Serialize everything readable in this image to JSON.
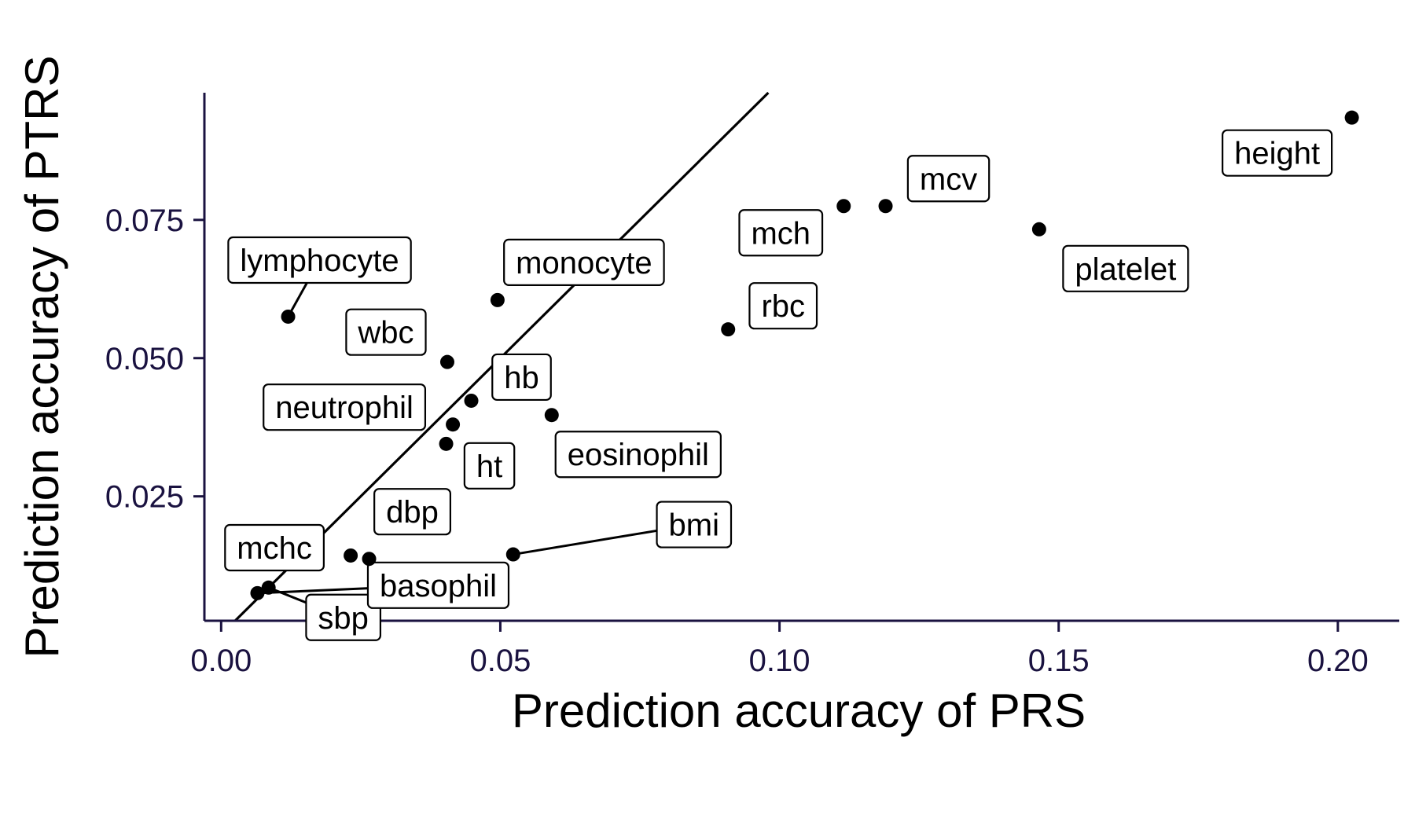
{
  "chart_data": {
    "type": "scatter",
    "xlabel": "Prediction accuracy of PRS",
    "ylabel": "Prediction accuracy of PTRS",
    "xlim": [
      -0.003,
      0.211
    ],
    "ylim": [
      0.0025,
      0.098
    ],
    "x_ticks": [
      {
        "value": 0.0,
        "label": "0.00"
      },
      {
        "value": 0.05,
        "label": "0.05"
      },
      {
        "value": 0.1,
        "label": "0.10"
      },
      {
        "value": 0.15,
        "label": "0.15"
      },
      {
        "value": 0.2,
        "label": "0.20"
      }
    ],
    "y_ticks": [
      {
        "value": 0.025,
        "label": "0.025"
      },
      {
        "value": 0.05,
        "label": "0.050"
      },
      {
        "value": 0.075,
        "label": "0.075"
      }
    ],
    "reference_line": {
      "kind": "identity",
      "description": "y = x"
    },
    "grid": false,
    "point_color": "#000000",
    "axis_color": "#1a1240",
    "points": [
      {
        "name": "height",
        "x": 0.2025,
        "y": 0.0935
      },
      {
        "name": "mcv",
        "x": 0.119,
        "y": 0.0775
      },
      {
        "name": "mch",
        "x": 0.1115,
        "y": 0.0775
      },
      {
        "name": "platelet",
        "x": 0.1465,
        "y": 0.0733
      },
      {
        "name": "rbc",
        "x": 0.0908,
        "y": 0.0552
      },
      {
        "name": "lymphocyte",
        "x": 0.012,
        "y": 0.0575
      },
      {
        "name": "monocyte",
        "x": 0.0495,
        "y": 0.0605
      },
      {
        "name": "wbc",
        "x": 0.0405,
        "y": 0.0493
      },
      {
        "name": "hb",
        "x": 0.0448,
        "y": 0.0423
      },
      {
        "name": "neutrophil",
        "x": 0.0415,
        "y": 0.038
      },
      {
        "name": "eosinophil",
        "x": 0.0592,
        "y": 0.0397
      },
      {
        "name": "ht",
        "x": 0.0403,
        "y": 0.0345
      },
      {
        "name": "dbp",
        "x": 0.0265,
        "y": 0.0137
      },
      {
        "name": "mchc",
        "x": 0.0232,
        "y": 0.0143
      },
      {
        "name": "bmi",
        "x": 0.0523,
        "y": 0.0145
      },
      {
        "name": "sbp",
        "x": 0.0085,
        "y": 0.0085
      },
      {
        "name": "basophil",
        "x": 0.0065,
        "y": 0.0075
      }
    ]
  }
}
